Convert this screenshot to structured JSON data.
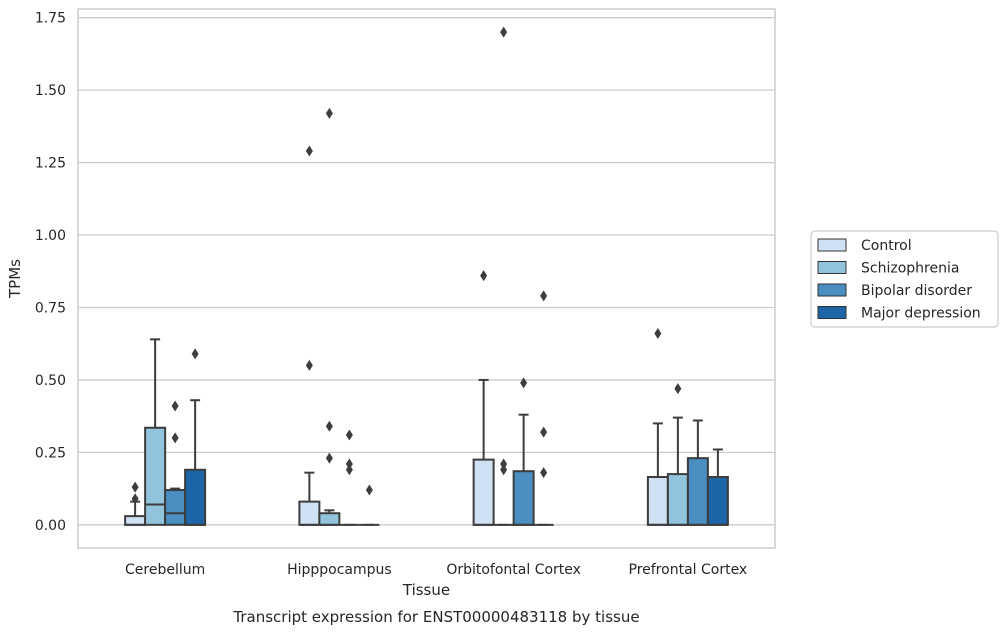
{
  "chart_data": {
    "type": "box",
    "title": "",
    "caption": "Transcript expression for ENST00000483118 by tissue",
    "xlabel": "Tissue",
    "ylabel": "TPMs",
    "ylim": [
      -0.08,
      1.78
    ],
    "yticks": [
      0.0,
      0.25,
      0.5,
      0.75,
      1.0,
      1.25,
      1.5,
      1.75
    ],
    "ytick_labels": [
      "0.00",
      "0.25",
      "0.50",
      "0.75",
      "1.00",
      "1.25",
      "1.50",
      "1.75"
    ],
    "grid": true,
    "legend_position": "right",
    "categories": [
      "Cerebellum",
      "Hipppocampus",
      "Orbitofontal Cortex",
      "Prefrontal Cortex"
    ],
    "series": [
      {
        "name": "Control",
        "color": "#cfe1f2",
        "boxes": [
          {
            "q1": 0.0,
            "median": 0.0,
            "q3": 0.03,
            "whisker_low": 0.0,
            "whisker_high": 0.08,
            "outliers": [
              0.13,
              0.09
            ]
          },
          {
            "q1": 0.0,
            "median": 0.0,
            "q3": 0.08,
            "whisker_low": 0.0,
            "whisker_high": 0.18,
            "outliers": [
              0.55,
              1.29
            ]
          },
          {
            "q1": 0.0,
            "median": 0.0,
            "q3": 0.225,
            "whisker_low": 0.0,
            "whisker_high": 0.5,
            "outliers": [
              0.86
            ]
          },
          {
            "q1": 0.0,
            "median": 0.0,
            "q3": 0.165,
            "whisker_low": 0.0,
            "whisker_high": 0.35,
            "outliers": [
              0.66
            ]
          }
        ]
      },
      {
        "name": "Schizophrenia",
        "color": "#93c4de",
        "boxes": [
          {
            "q1": 0.0,
            "median": 0.07,
            "q3": 0.335,
            "whisker_low": 0.0,
            "whisker_high": 0.64,
            "outliers": []
          },
          {
            "q1": 0.0,
            "median": 0.0,
            "q3": 0.04,
            "whisker_low": 0.0,
            "whisker_high": 0.05,
            "outliers": [
              0.34,
              0.23,
              1.42
            ]
          },
          {
            "q1": 0.0,
            "median": 0.0,
            "q3": 0.0,
            "whisker_low": 0.0,
            "whisker_high": 0.0,
            "outliers": [
              0.21,
              0.19,
              1.7
            ]
          },
          {
            "q1": 0.0,
            "median": 0.0,
            "q3": 0.175,
            "whisker_low": 0.0,
            "whisker_high": 0.37,
            "outliers": [
              0.47
            ]
          }
        ]
      },
      {
        "name": "Bipolar disorder",
        "color": "#4a8ec2",
        "boxes": [
          {
            "q1": 0.0,
            "median": 0.04,
            "q3": 0.12,
            "whisker_low": 0.0,
            "whisker_high": 0.125,
            "outliers": [
              0.41,
              0.3
            ]
          },
          {
            "q1": 0.0,
            "median": 0.0,
            "q3": 0.0,
            "whisker_low": 0.0,
            "whisker_high": 0.0,
            "outliers": [
              0.31,
              0.21,
              0.19
            ]
          },
          {
            "q1": 0.0,
            "median": 0.0,
            "q3": 0.185,
            "whisker_low": 0.0,
            "whisker_high": 0.38,
            "outliers": [
              0.49
            ]
          },
          {
            "q1": 0.0,
            "median": 0.0,
            "q3": 0.23,
            "whisker_low": 0.0,
            "whisker_high": 0.36,
            "outliers": []
          }
        ]
      },
      {
        "name": "Major depression",
        "color": "#1c66a7",
        "boxes": [
          {
            "q1": 0.0,
            "median": 0.0,
            "q3": 0.19,
            "whisker_low": 0.0,
            "whisker_high": 0.43,
            "outliers": [
              0.59
            ]
          },
          {
            "q1": 0.0,
            "median": 0.0,
            "q3": 0.0,
            "whisker_low": 0.0,
            "whisker_high": 0.0,
            "outliers": [
              0.12
            ]
          },
          {
            "q1": 0.0,
            "median": 0.0,
            "q3": 0.0,
            "whisker_low": 0.0,
            "whisker_high": 0.0,
            "outliers": [
              0.79,
              0.32,
              0.18
            ]
          },
          {
            "q1": 0.0,
            "median": 0.0,
            "q3": 0.165,
            "whisker_low": 0.0,
            "whisker_high": 0.26,
            "outliers": []
          }
        ]
      }
    ]
  }
}
